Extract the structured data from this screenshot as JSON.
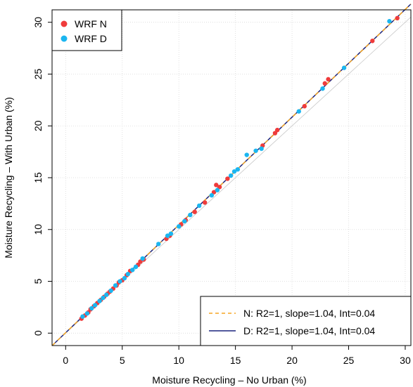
{
  "chart_data": {
    "type": "scatter",
    "xlabel": "Moisture Recycling – No Urban (%)",
    "ylabel": "Moisture Recycling – With Urban (%)",
    "xlim": [
      -1.2,
      30.5
    ],
    "ylim": [
      -1.2,
      31.2
    ],
    "xticks": [
      0,
      5,
      10,
      15,
      20,
      25,
      30
    ],
    "yticks": [
      0,
      5,
      10,
      15,
      20,
      25,
      30
    ],
    "grid": true,
    "legend_points": {
      "position": "top-left",
      "entries": [
        {
          "label": "WRF N",
          "color": "#ef3b3b"
        },
        {
          "label": "WRF D",
          "color": "#1bb6f0"
        }
      ]
    },
    "legend_lines": {
      "position": "bottom-right",
      "entries": [
        {
          "label": "N: R2=1, slope=1.04, Int=0.04",
          "color": "#f5a623",
          "style": "dashed"
        },
        {
          "label": "D: R2=1, slope=1.04, Int=0.04",
          "color": "#1a237e",
          "style": "solid"
        }
      ]
    },
    "fits": [
      {
        "slope": 1.04,
        "intercept": 0.04,
        "color": "#f5a623",
        "style": "dashed"
      },
      {
        "slope": 1.04,
        "intercept": 0.04,
        "color": "#1a237e",
        "style": "solid"
      }
    ],
    "series": [
      {
        "name": "WRF N",
        "color": "#ef3b3b",
        "points": [
          [
            1.4,
            1.4
          ],
          [
            1.7,
            1.7
          ],
          [
            2.0,
            2.0
          ],
          [
            2.2,
            2.3
          ],
          [
            2.5,
            2.6
          ],
          [
            2.8,
            2.9
          ],
          [
            3.1,
            3.2
          ],
          [
            3.4,
            3.5
          ],
          [
            3.7,
            3.8
          ],
          [
            3.9,
            4.0
          ],
          [
            4.2,
            4.3
          ],
          [
            4.5,
            4.6
          ],
          [
            4.7,
            4.9
          ],
          [
            5.0,
            5.1
          ],
          [
            5.4,
            5.6
          ],
          [
            5.7,
            6.0
          ],
          [
            6.4,
            6.6
          ],
          [
            6.6,
            6.9
          ],
          [
            6.9,
            7.1
          ],
          [
            8.9,
            9.1
          ],
          [
            9.2,
            9.4
          ],
          [
            10.2,
            10.5
          ],
          [
            10.6,
            10.9
          ],
          [
            11.4,
            11.7
          ],
          [
            12.3,
            12.6
          ],
          [
            13.1,
            13.6
          ],
          [
            13.3,
            14.3
          ],
          [
            13.6,
            14.1
          ],
          [
            14.3,
            14.9
          ],
          [
            17.4,
            18.1
          ],
          [
            18.5,
            19.3
          ],
          [
            18.7,
            19.6
          ],
          [
            21.1,
            21.9
          ],
          [
            22.9,
            24.1
          ],
          [
            23.2,
            24.5
          ],
          [
            27.1,
            28.2
          ],
          [
            29.3,
            30.4
          ]
        ]
      },
      {
        "name": "WRF D",
        "color": "#1bb6f0",
        "points": [
          [
            1.5,
            1.6
          ],
          [
            1.9,
            1.9
          ],
          [
            2.3,
            2.4
          ],
          [
            2.6,
            2.7
          ],
          [
            3.0,
            3.1
          ],
          [
            3.3,
            3.4
          ],
          [
            3.6,
            3.7
          ],
          [
            4.0,
            4.1
          ],
          [
            4.4,
            4.6
          ],
          [
            4.8,
            5.0
          ],
          [
            5.2,
            5.3
          ],
          [
            5.5,
            5.7
          ],
          [
            5.9,
            6.1
          ],
          [
            6.2,
            6.4
          ],
          [
            6.8,
            7.2
          ],
          [
            8.2,
            8.6
          ],
          [
            9.0,
            9.4
          ],
          [
            9.3,
            9.6
          ],
          [
            10.0,
            10.3
          ],
          [
            10.5,
            10.8
          ],
          [
            11.0,
            11.4
          ],
          [
            11.8,
            12.3
          ],
          [
            12.9,
            13.3
          ],
          [
            13.4,
            13.8
          ],
          [
            14.6,
            15.2
          ],
          [
            14.9,
            15.6
          ],
          [
            15.2,
            15.8
          ],
          [
            16.0,
            17.2
          ],
          [
            16.8,
            17.6
          ],
          [
            17.3,
            17.8
          ],
          [
            20.6,
            21.4
          ],
          [
            22.7,
            23.6
          ],
          [
            24.6,
            25.6
          ],
          [
            28.6,
            30.1
          ]
        ]
      }
    ]
  }
}
